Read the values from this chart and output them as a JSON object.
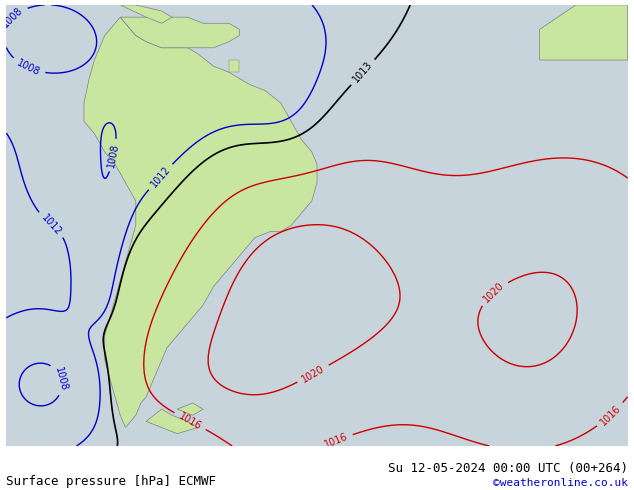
{
  "title_left": "Surface pressure [hPa] ECMWF",
  "title_right": "Su 12-05-2024 00:00 UTC (00+264)",
  "watermark": "©weatheronline.co.uk",
  "bg_color": "#c8d4dc",
  "land_color": "#c8e6a0",
  "border_color": "#808080",
  "label_fontsize": 7,
  "title_fontsize": 9,
  "figsize": [
    6.34,
    4.9
  ],
  "dpi": 100,
  "xlim": [
    -95,
    25
  ],
  "ylim": [
    -58,
    14
  ]
}
